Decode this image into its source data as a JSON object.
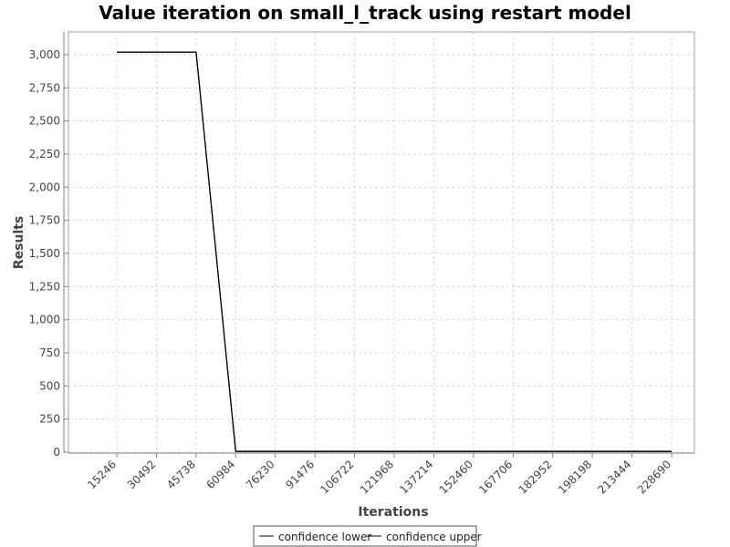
{
  "chart_data": {
    "type": "line",
    "title": "Value iteration on small_l_track using restart model",
    "xlabel": "Iterations",
    "ylabel": "Results",
    "categories": [
      "15246",
      "30492",
      "45738",
      "60984",
      "76230",
      "91476",
      "106722",
      "121968",
      "137214",
      "152460",
      "167706",
      "182952",
      "198198",
      "213444",
      "228690"
    ],
    "ylim": [
      0,
      3150
    ],
    "y_ticks": [
      0,
      250,
      500,
      750,
      1000,
      1250,
      1500,
      1750,
      2000,
      2250,
      2500,
      2750,
      3000
    ],
    "y_tick_labels": [
      "0",
      "250",
      "500",
      "750",
      "1,000",
      "1,250",
      "1,500",
      "1,750",
      "2,000",
      "2,250",
      "2,500",
      "2,750",
      "3,000"
    ],
    "grid": true,
    "legend_position": "bottom-center",
    "series": [
      {
        "name": "confidence lower",
        "color": "#000000",
        "values": [
          3020,
          3020,
          3020,
          5,
          5,
          5,
          5,
          5,
          5,
          5,
          5,
          5,
          5,
          5,
          5
        ]
      },
      {
        "name": "confidence upper",
        "color": "#000000",
        "values": [
          3020,
          3020,
          3020,
          7,
          7,
          7,
          7,
          7,
          7,
          7,
          7,
          7,
          7,
          7,
          7
        ]
      }
    ]
  }
}
